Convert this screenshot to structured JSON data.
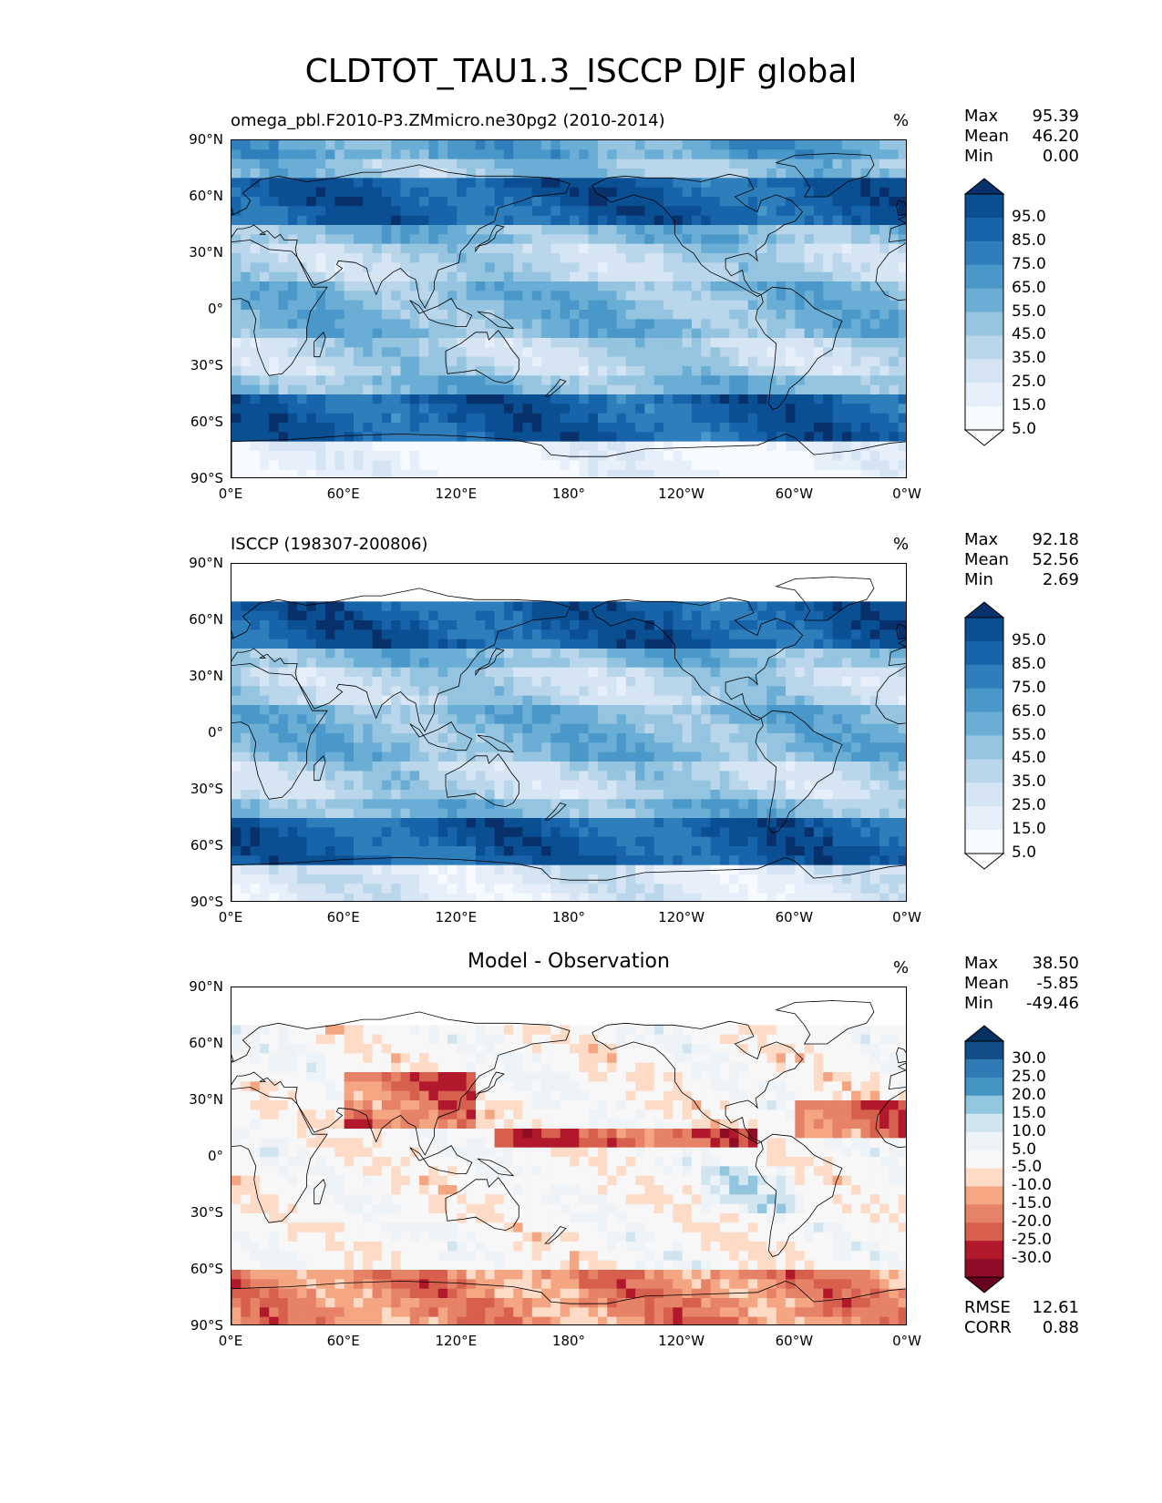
{
  "title": "CLDTOT_TAU1.3_ISCCP DJF global",
  "axes": {
    "lat_ticks": [
      "90°N",
      "60°N",
      "30°N",
      "0°",
      "30°S",
      "60°S",
      "90°S"
    ],
    "lon_ticks": [
      "0°E",
      "60°E",
      "120°E",
      "180°",
      "120°W",
      "60°W",
      "0°W"
    ]
  },
  "panels": [
    {
      "name": "model",
      "subtitle": "omega_pbl.F2010-P3.ZMmicro.ne30pg2 (2010-2014)",
      "unit": "%",
      "stats": [
        {
          "key": "Max",
          "value": "95.39"
        },
        {
          "key": "Mean",
          "value": "46.20"
        },
        {
          "key": "Min",
          "value": "0.00"
        }
      ],
      "colorbar": {
        "labels": [
          "95.0",
          "85.0",
          "75.0",
          "65.0",
          "55.0",
          "45.0",
          "35.0",
          "25.0",
          "15.0",
          "5.0"
        ],
        "colors": [
          "#08306b",
          "#0b4f93",
          "#1764ab",
          "#2f7ebc",
          "#4a98c9",
          "#6aaed6",
          "#94c4df",
          "#bad6eb",
          "#d5e5f4",
          "#e7f0fa",
          "#f7fbff",
          "#ffffff"
        ]
      }
    },
    {
      "name": "observation",
      "subtitle": "ISCCP (198307-200806)",
      "unit": "%",
      "stats": [
        {
          "key": "Max",
          "value": "92.18"
        },
        {
          "key": "Mean",
          "value": "52.56"
        },
        {
          "key": "Min",
          "value": "2.69"
        }
      ],
      "colorbar": {
        "labels": [
          "95.0",
          "85.0",
          "75.0",
          "65.0",
          "55.0",
          "45.0",
          "35.0",
          "25.0",
          "15.0",
          "5.0"
        ],
        "colors": [
          "#08306b",
          "#0b4f93",
          "#1764ab",
          "#2f7ebc",
          "#4a98c9",
          "#6aaed6",
          "#94c4df",
          "#bad6eb",
          "#d5e5f4",
          "#e7f0fa",
          "#f7fbff",
          "#ffffff"
        ]
      }
    },
    {
      "name": "difference",
      "subtitle": "Model - Observation",
      "unit": "%",
      "stats": [
        {
          "key": "Max",
          "value": "38.50"
        },
        {
          "key": "Mean",
          "value": "-5.85"
        },
        {
          "key": "Min",
          "value": "-49.46"
        }
      ],
      "metrics": [
        {
          "key": "RMSE",
          "value": "12.61"
        },
        {
          "key": "CORR",
          "value": "0.88"
        }
      ],
      "colorbar": {
        "labels": [
          "30.0",
          "25.0",
          "20.0",
          "15.0",
          "10.0",
          "5.0",
          "-5.0",
          "-10.0",
          "-15.0",
          "-20.0",
          "-25.0",
          "-30.0"
        ],
        "colors": [
          "#053061",
          "#134c87",
          "#2f79b5",
          "#4393c3",
          "#92c5de",
          "#d1e5f0",
          "#eef3f7",
          "#f7f7f7",
          "#fddbc7",
          "#f4a582",
          "#e58267",
          "#d6604d",
          "#b2182b",
          "#8e0c25",
          "#67001f"
        ]
      }
    }
  ]
}
